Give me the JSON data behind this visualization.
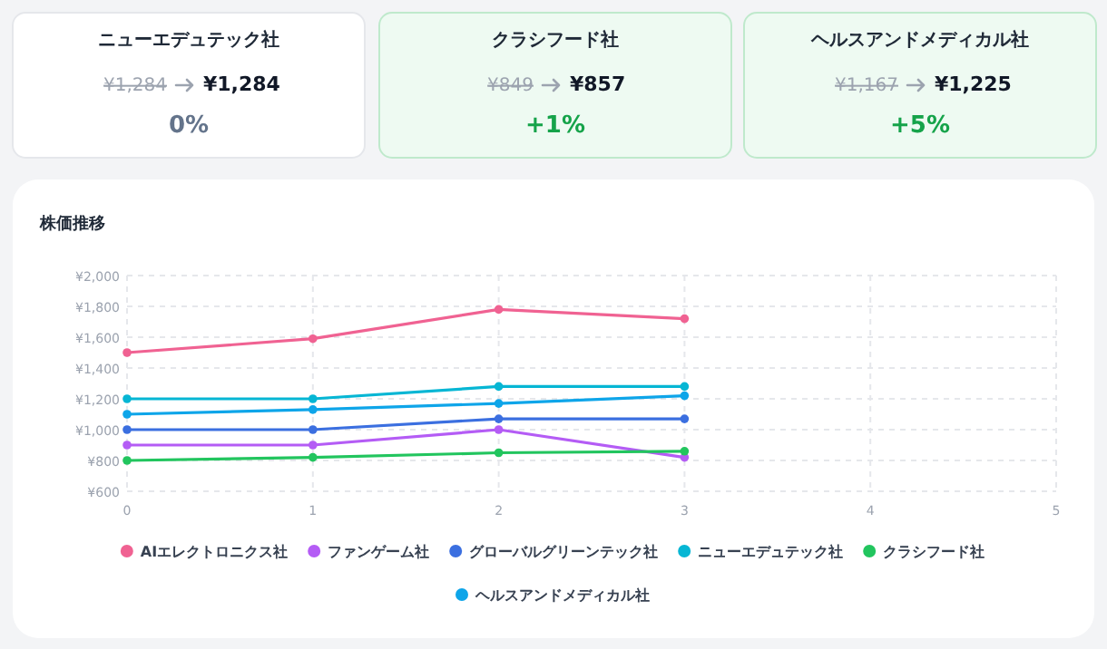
{
  "chart_data": [
    {
      "type": "other",
      "title": "ニューエデュテック社",
      "annotations": [
        "¥1,284",
        "¥1,284",
        "0%"
      ],
      "color": "#64748b"
    },
    {
      "type": "other",
      "title": "クラシフード社",
      "annotations": [
        "¥849",
        "¥857",
        "+1%"
      ],
      "color": "#16a34a"
    },
    {
      "type": "other",
      "title": "ヘルスアンドメディカル社",
      "annotations": [
        "¥1,167",
        "¥1,225",
        "+5%"
      ],
      "color": "#16a34a"
    },
    {
      "type": "line",
      "title": "株価推移",
      "x": [
        0,
        1,
        2,
        3
      ],
      "xlim": [
        0,
        5
      ],
      "xticks": [
        0,
        1,
        2,
        3,
        4,
        5
      ],
      "ylim": [
        600,
        2000
      ],
      "yticks": [
        {
          "value": 600,
          "label": "¥600"
        },
        {
          "value": 800,
          "label": "¥800"
        },
        {
          "value": 1000,
          "label": "¥1,000"
        },
        {
          "value": 1200,
          "label": "¥1,200"
        },
        {
          "value": 1400,
          "label": "¥1,400"
        },
        {
          "value": 1600,
          "label": "¥1,600"
        },
        {
          "value": 1800,
          "label": "¥1,800"
        },
        {
          "value": 2000,
          "label": "¥2,000"
        }
      ],
      "grid": true,
      "legend": "bottom",
      "marker": "circle",
      "series": [
        {
          "name": "AIエレクトロニクス社",
          "color": "#f06292",
          "values": [
            1500,
            1590,
            1780,
            1720
          ]
        },
        {
          "name": "ファンゲーム社",
          "color": "#b45cf5",
          "values": [
            900,
            900,
            1000,
            820
          ]
        },
        {
          "name": "グローバルグリーンテック社",
          "color": "#3b6fe0",
          "values": [
            1000,
            1000,
            1070,
            1070
          ]
        },
        {
          "name": "ニューエデュテック社",
          "color": "#06b6d4",
          "values": [
            1200,
            1200,
            1280,
            1280
          ]
        },
        {
          "name": "クラシフード社",
          "color": "#22c55e",
          "values": [
            800,
            820,
            850,
            860
          ]
        },
        {
          "name": "ヘルスアンドメディカル社",
          "color": "#0ea5e9",
          "values": [
            1100,
            1130,
            1170,
            1220
          ]
        }
      ]
    }
  ]
}
